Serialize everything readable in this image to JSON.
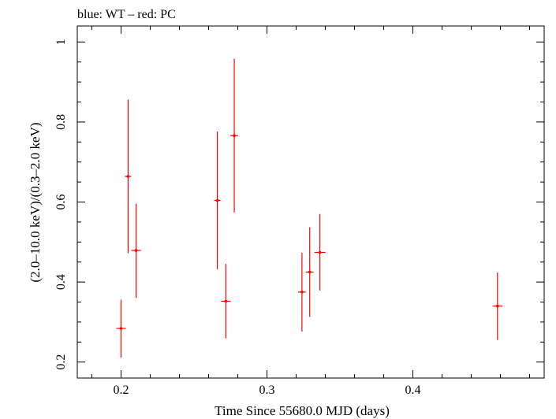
{
  "chart_data": {
    "type": "scatter",
    "title": "blue: WT – red: PC",
    "xlabel": "Time Since 55680.0 MJD (days)",
    "ylabel": "(2.0–10.0 keV)/(0.3–2.0 keV)",
    "xlim": [
      0.17,
      0.49
    ],
    "ylim": [
      0.16,
      1.04
    ],
    "xticks": [
      0.2,
      0.3,
      0.4
    ],
    "xtick_labels": [
      "0.2",
      "0.3",
      "0.4"
    ],
    "yticks": [
      0.2,
      0.4,
      0.6,
      0.8,
      1.0
    ],
    "ytick_labels": [
      "0.2",
      "0.4",
      "0.6",
      "0.8",
      "1"
    ],
    "grid": false,
    "series": [
      {
        "color": "#ff0000",
        "points": [
          {
            "x": 0.2,
            "y": 0.284,
            "xerr": 0.0033,
            "ylo": 0.211,
            "yhi": 0.356
          },
          {
            "x": 0.2048,
            "y": 0.664,
            "xerr": 0.0022,
            "ylo": 0.472,
            "yhi": 0.856
          },
          {
            "x": 0.2103,
            "y": 0.479,
            "xerr": 0.0033,
            "ylo": 0.36,
            "yhi": 0.596
          },
          {
            "x": 0.266,
            "y": 0.604,
            "xerr": 0.0022,
            "ylo": 0.432,
            "yhi": 0.776
          },
          {
            "x": 0.2718,
            "y": 0.352,
            "xerr": 0.0033,
            "ylo": 0.259,
            "yhi": 0.445
          },
          {
            "x": 0.2776,
            "y": 0.766,
            "xerr": 0.0027,
            "ylo": 0.574,
            "yhi": 0.958
          },
          {
            "x": 0.324,
            "y": 0.375,
            "xerr": 0.0027,
            "ylo": 0.276,
            "yhi": 0.473
          },
          {
            "x": 0.3293,
            "y": 0.425,
            "xerr": 0.0027,
            "ylo": 0.313,
            "yhi": 0.537
          },
          {
            "x": 0.3363,
            "y": 0.474,
            "xerr": 0.0038,
            "ylo": 0.379,
            "yhi": 0.57
          },
          {
            "x": 0.458,
            "y": 0.34,
            "xerr": 0.0033,
            "ylo": 0.255,
            "yhi": 0.424
          }
        ]
      }
    ]
  }
}
